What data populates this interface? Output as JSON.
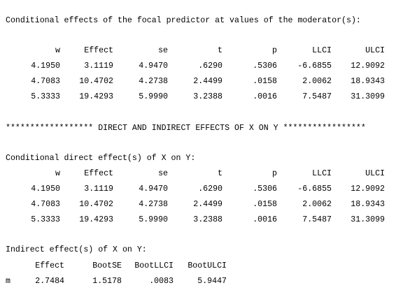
{
  "conditional_effects": {
    "title": "Conditional effects of the focal predictor at values of the moderator(s):",
    "columns": [
      "w",
      "Effect",
      "se",
      "t",
      "p",
      "LLCI",
      "ULCI"
    ],
    "rows": [
      [
        "4.1950",
        "3.1119",
        "4.9470",
        ".6290",
        ".5306",
        "-6.6855",
        "12.9092"
      ],
      [
        "4.7083",
        "10.4702",
        "4.2738",
        "2.4499",
        ".0158",
        "2.0062",
        "18.9343"
      ],
      [
        "5.3333",
        "19.4293",
        "5.9990",
        "3.2388",
        ".0016",
        "7.5487",
        "31.3099"
      ]
    ]
  },
  "divider": "****************** DIRECT AND INDIRECT EFFECTS OF X ON Y *****************",
  "direct_effects": {
    "title": "Conditional direct effect(s) of X on Y:",
    "columns": [
      "w",
      "Effect",
      "se",
      "t",
      "p",
      "LLCI",
      "ULCI"
    ],
    "rows": [
      [
        "4.1950",
        "3.1119",
        "4.9470",
        ".6290",
        ".5306",
        "-6.6855",
        "12.9092"
      ],
      [
        "4.7083",
        "10.4702",
        "4.2738",
        "2.4499",
        ".0158",
        "2.0062",
        "18.9343"
      ],
      [
        "5.3333",
        "19.4293",
        "5.9990",
        "3.2388",
        ".0016",
        "7.5487",
        "31.3099"
      ]
    ]
  },
  "indirect_effects": {
    "title": "Indirect effect(s) of X on Y:",
    "columns": [
      "Effect",
      "BootSE",
      "BootLLCI",
      "BootULCI"
    ],
    "rows": [
      [
        "m",
        "2.7484",
        "1.5178",
        ".0083",
        "5.9447"
      ]
    ]
  }
}
